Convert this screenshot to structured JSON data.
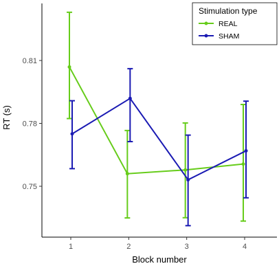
{
  "chart_data": {
    "type": "line",
    "xlabel": "Block number",
    "ylabel": "RT (s)",
    "categories": [
      "1",
      "2",
      "3",
      "4"
    ],
    "y_ticks": [
      0.75,
      0.78,
      0.81
    ],
    "y_tick_labels": [
      "0.75",
      "0.78",
      "0.81"
    ],
    "ylim": [
      0.734,
      0.837
    ],
    "grid": false,
    "legend": {
      "title": "Stimulation type",
      "position": "top-right"
    },
    "series": [
      {
        "name": "REAL",
        "color": "#66cc1a",
        "values": [
          0.8069,
          0.756,
          0.7578,
          0.7606
        ],
        "error_low": [
          0.7823,
          0.7349,
          0.735,
          0.7334
        ],
        "error_high": [
          0.833,
          0.7766,
          0.7802,
          0.789
        ]
      },
      {
        "name": "SHAM",
        "color": "#1a1ab3",
        "values": [
          0.775,
          0.7919,
          0.7531,
          0.7669
        ],
        "error_low": [
          0.7584,
          0.7713,
          0.7312,
          0.7445
        ],
        "error_high": [
          0.7908,
          0.8061,
          0.7744,
          0.7906
        ]
      }
    ]
  }
}
